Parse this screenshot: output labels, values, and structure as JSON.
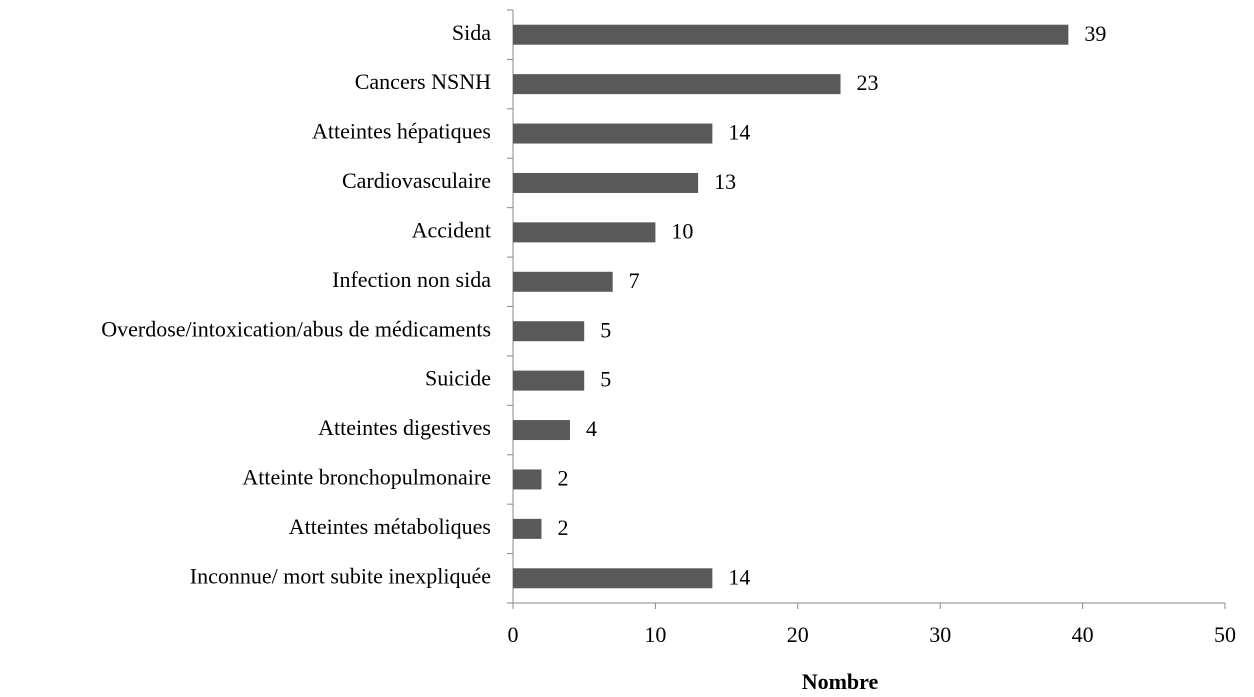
{
  "chart_data": {
    "type": "hbar",
    "x_label": "Nombre",
    "categories": [
      "Sida",
      "Cancers NSNH",
      "Atteintes hépatiques",
      "Cardiovasculaire",
      "Accident",
      "Infection non sida",
      "Overdose/intoxication/abus de médicaments",
      "Suicide",
      "Atteintes digestives",
      "Atteinte bronchopulmonaire",
      "Atteintes métaboliques",
      "Inconnue/ mort subite inexpliquée"
    ],
    "values": [
      39,
      23,
      14,
      13,
      10,
      7,
      5,
      5,
      4,
      2,
      2,
      14
    ],
    "color": "#595959",
    "xlim": [
      0,
      50
    ],
    "xticks": [
      0,
      10,
      20,
      30,
      40,
      50
    ],
    "grid": false
  }
}
